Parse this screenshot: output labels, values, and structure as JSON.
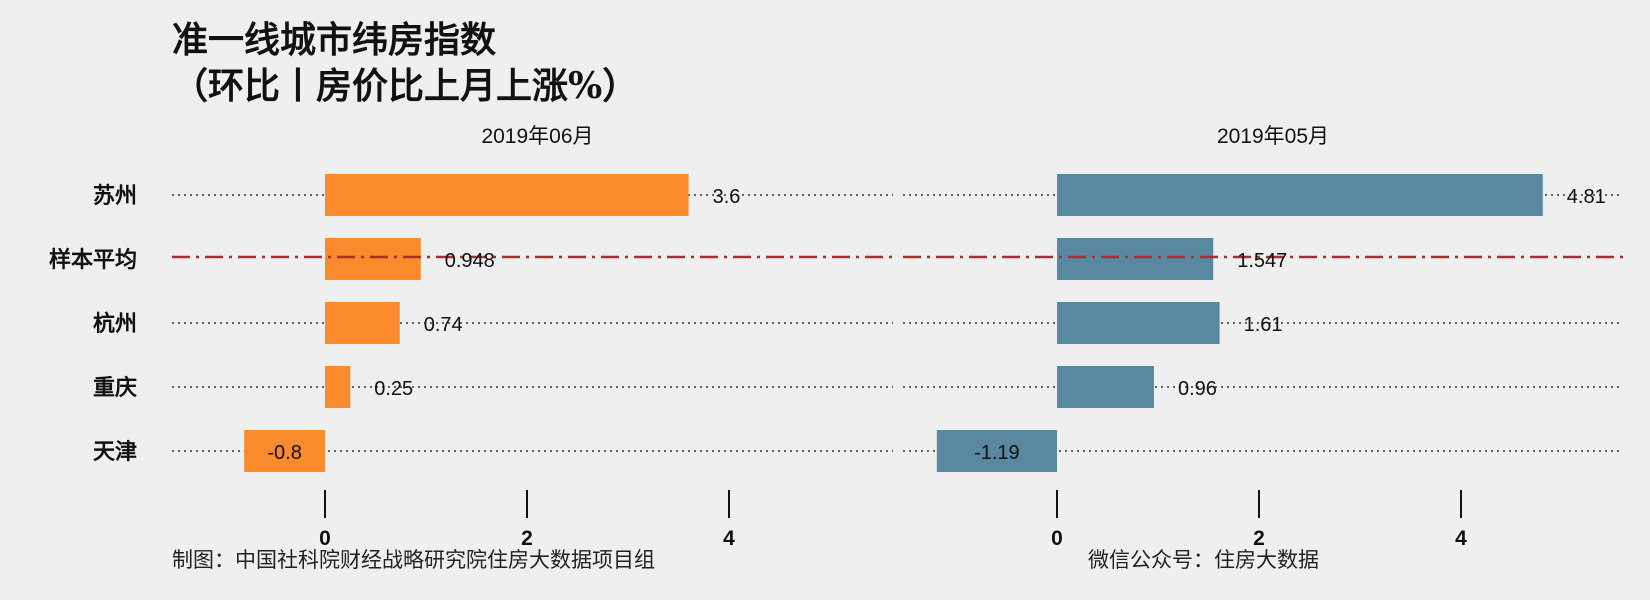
{
  "title": {
    "line1": "准一线城市纬房指数",
    "line2": "（环比丨房价比上月上涨%）"
  },
  "captions": {
    "left": "制图：中国社科院财经战略研究院住房大数据项目组",
    "right": "微信公众号：住房大数据"
  },
  "colors": {
    "background": "#efefef",
    "panel_left_bar": "#fb8a2d",
    "panel_right_bar": "#5b88a1",
    "average_line": "#b22b2b",
    "dotted_line": "#333333"
  },
  "chart_data": [
    {
      "type": "bar",
      "orientation": "horizontal",
      "panel_label": "2019年06月",
      "categories": [
        "苏州",
        "样本平均",
        "杭州",
        "重庆",
        "天津"
      ],
      "values": [
        3.6,
        0.948,
        0.74,
        0.25,
        -0.8
      ],
      "value_labels": [
        "3.6",
        "0.948",
        "0.74",
        "0.25",
        "-0.8"
      ],
      "average_category": "样本平均",
      "xlim": [
        -1.6,
        5.5
      ],
      "xticks": [
        0,
        2,
        4
      ],
      "xtick_labels": [
        "0",
        "2",
        "4"
      ],
      "bar_color": "#fb8a2d",
      "grid": false
    },
    {
      "type": "bar",
      "orientation": "horizontal",
      "panel_label": "2019年05月",
      "categories": [
        "苏州",
        "样本平均",
        "杭州",
        "重庆",
        "天津"
      ],
      "values": [
        4.81,
        1.547,
        1.61,
        0.96,
        -1.19
      ],
      "value_labels": [
        "4.81",
        "1.547",
        "1.61",
        "0.96",
        "-1.19"
      ],
      "average_category": "样本平均",
      "xlim": [
        -1.6,
        5.5
      ],
      "xticks": [
        0,
        2,
        4
      ],
      "xtick_labels": [
        "0",
        "2",
        "4"
      ],
      "bar_color": "#5b88a1",
      "grid": false
    }
  ]
}
